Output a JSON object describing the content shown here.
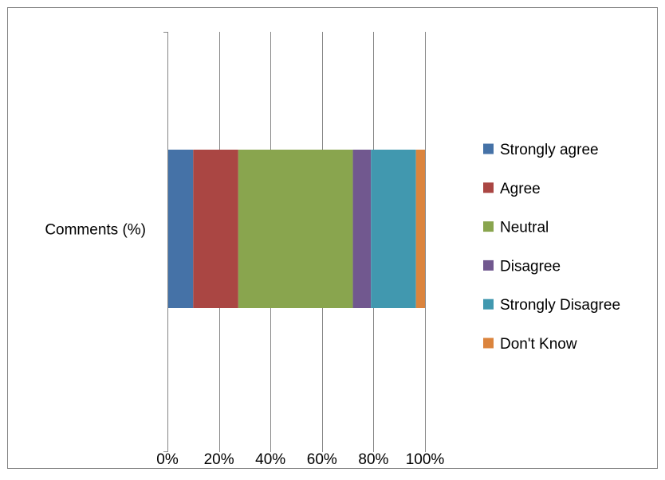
{
  "chart_data": {
    "type": "bar",
    "orientation": "horizontal",
    "stacking": "percent",
    "categories": [
      "Comments (%)"
    ],
    "series": [
      {
        "name": "Strongly agree",
        "values": [
          10
        ],
        "color": "#4572A7"
      },
      {
        "name": "Agree",
        "values": [
          17.5
        ],
        "color": "#AA4643"
      },
      {
        "name": "Neutral",
        "values": [
          44.5
        ],
        "color": "#89A54E"
      },
      {
        "name": "Disagree",
        "values": [
          7
        ],
        "color": "#71588F"
      },
      {
        "name": "Strongly Disagree",
        "values": [
          17.5
        ],
        "color": "#4198AF"
      },
      {
        "name": "Don't Know",
        "values": [
          3.5
        ],
        "color": "#DB843D"
      }
    ],
    "x_ticks": [
      "0%",
      "20%",
      "40%",
      "60%",
      "80%",
      "100%"
    ],
    "xlim": [
      0,
      100
    ],
    "grid": true,
    "legend_position": "right"
  }
}
